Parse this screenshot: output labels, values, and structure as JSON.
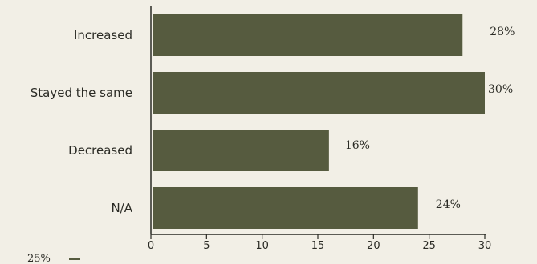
{
  "chart_data": {
    "type": "bar",
    "orientation": "horizontal",
    "categories": [
      "Increased",
      "Stayed the same",
      "Decreased",
      "N/A"
    ],
    "values": [
      28,
      30,
      16,
      24
    ],
    "value_labels": [
      "28%",
      "30%",
      "16%",
      "24%"
    ],
    "xlim": [
      0,
      30
    ],
    "x_ticks": [
      0,
      5,
      10,
      15,
      20,
      25,
      30
    ],
    "x_tick_labels": [
      "0",
      "5",
      "10",
      "15",
      "20",
      "25",
      "30"
    ],
    "grid": false,
    "legend": "none",
    "bar_color": "#565b3f",
    "fragment_text": "25%"
  }
}
